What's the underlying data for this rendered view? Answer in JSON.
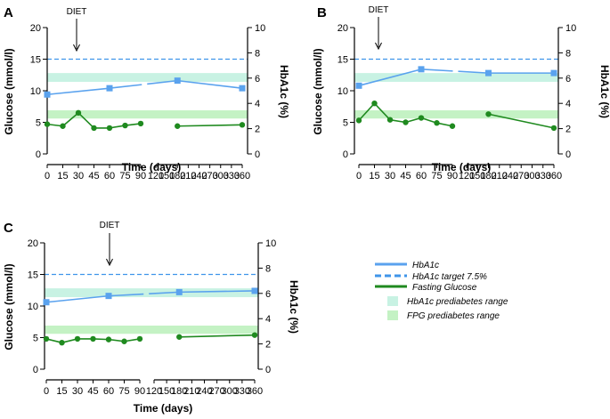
{
  "figure": {
    "legend_placement": "bottom-right"
  },
  "colors": {
    "hba1c": "#5aa2ee",
    "target": "#3f95ea",
    "glucose": "#1f8a1f",
    "hba1c_band": "#c8f2e3",
    "fpg_band": "#c4f2c4",
    "axis": "#000000"
  },
  "x_ticks": [
    "0",
    "15",
    "30",
    "45",
    "60",
    "75",
    "90",
    "120",
    "150",
    "180",
    "210",
    "240",
    "270",
    "300",
    "330",
    "360"
  ],
  "legend": {
    "hba1c": "HbA1c",
    "target": "HbA1c target 7.5%",
    "glucose": "Fasting Glucose",
    "hba1c_band": "HbA1c prediabetes range",
    "fpg_band": "FPG prediabetes range"
  },
  "chart_data": [
    {
      "type": "line",
      "panel": "A",
      "annotation": "DIET",
      "annotation_x": 30,
      "xlabel": "Time (days)",
      "ylabel": "Glucose (mmol/l)",
      "y2label": "HbA1c (%)",
      "ylim": [
        0,
        20
      ],
      "yticks": [
        "0",
        "5",
        "10",
        "15",
        "20"
      ],
      "y2lim": [
        0,
        10
      ],
      "y2ticks": [
        "0",
        "2",
        "4",
        "6",
        "8",
        "10"
      ],
      "x_segments": [
        [
          0,
          90
        ],
        [
          120,
          360
        ]
      ],
      "hba1c_target": 7.5,
      "hba1c_prediabetes_range": [
        5.7,
        6.4
      ],
      "fpg_prediabetes_range": [
        5.6,
        6.9
      ],
      "series": [
        {
          "name": "HbA1c",
          "axis": "right",
          "x": [
            0,
            60,
            180,
            360
          ],
          "values": [
            4.7,
            5.2,
            5.8,
            5.2
          ]
        },
        {
          "name": "Fasting Glucose",
          "axis": "left",
          "x": [
            0,
            15,
            30,
            45,
            60,
            75,
            90,
            180,
            360
          ],
          "values": [
            4.7,
            4.4,
            6.5,
            4.1,
            4.1,
            4.5,
            4.8,
            4.4,
            4.6
          ]
        }
      ]
    },
    {
      "type": "line",
      "panel": "B",
      "annotation": "DIET",
      "annotation_x": 15,
      "xlabel": "Time (days)",
      "ylabel": "Glucose (mmol/l)",
      "y2label": "HbA1c (%)",
      "ylim": [
        0,
        20
      ],
      "yticks": [
        "0",
        "5",
        "10",
        "15",
        "20"
      ],
      "y2lim": [
        0,
        10
      ],
      "y2ticks": [
        "0",
        "2",
        "4",
        "6",
        "8",
        "10"
      ],
      "x_segments": [
        [
          0,
          90
        ],
        [
          120,
          360
        ]
      ],
      "hba1c_target": 7.5,
      "hba1c_prediabetes_range": [
        5.7,
        6.4
      ],
      "fpg_prediabetes_range": [
        5.6,
        6.9
      ],
      "series": [
        {
          "name": "HbA1c",
          "axis": "right",
          "x": [
            0,
            60,
            180,
            360
          ],
          "values": [
            5.4,
            6.7,
            6.4,
            6.4
          ]
        },
        {
          "name": "Fasting Glucose",
          "axis": "left",
          "x": [
            0,
            15,
            30,
            45,
            60,
            75,
            90,
            180,
            360
          ],
          "values": [
            5.3,
            8.0,
            5.4,
            5.0,
            5.7,
            4.9,
            4.4,
            6.3,
            4.1
          ]
        }
      ]
    },
    {
      "type": "line",
      "panel": "C",
      "annotation": "DIET",
      "annotation_x": 60,
      "xlabel": "Time (days)",
      "ylabel": "Glucose (mmol/l)",
      "y2label": "HbA1c (%)",
      "ylim": [
        0,
        20
      ],
      "yticks": [
        "0",
        "5",
        "10",
        "15",
        "20"
      ],
      "y2lim": [
        0,
        10
      ],
      "y2ticks": [
        "0",
        "2",
        "4",
        "6",
        "8",
        "10"
      ],
      "x_segments": [
        [
          0,
          90
        ],
        [
          120,
          360
        ]
      ],
      "hba1c_target": 7.5,
      "hba1c_prediabetes_range": [
        5.7,
        6.4
      ],
      "fpg_prediabetes_range": [
        5.6,
        6.9
      ],
      "series": [
        {
          "name": "HbA1c",
          "axis": "right",
          "x": [
            0,
            60,
            180,
            360
          ],
          "values": [
            5.3,
            5.8,
            6.1,
            6.2
          ]
        },
        {
          "name": "Fasting Glucose",
          "axis": "left",
          "x": [
            0,
            15,
            30,
            45,
            60,
            75,
            90,
            180,
            360
          ],
          "values": [
            4.8,
            4.2,
            4.8,
            4.8,
            4.7,
            4.4,
            4.8,
            5.1,
            5.4
          ]
        }
      ]
    }
  ]
}
